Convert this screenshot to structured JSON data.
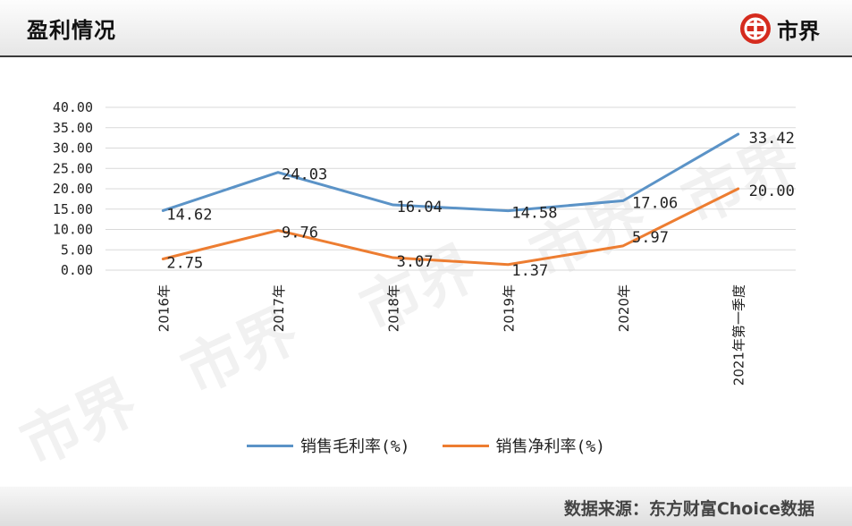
{
  "header": {
    "title": "盈利情况"
  },
  "brand": {
    "name": "市界",
    "icon": "shijie-logo-icon",
    "color": "#d52b1e"
  },
  "watermark": {
    "text": "市界"
  },
  "footer": {
    "source": "数据来源：东方财富Choice数据"
  },
  "chart_data": {
    "type": "line",
    "title": "",
    "xlabel": "",
    "ylabel": "",
    "ylim": [
      0,
      40
    ],
    "y_ticks": [
      "0.00",
      "5.00",
      "10.00",
      "15.00",
      "20.00",
      "25.00",
      "30.00",
      "35.00",
      "40.00"
    ],
    "categories": [
      "2016年",
      "2017年",
      "2018年",
      "2019年",
      "2020年",
      "2021年第一季度"
    ],
    "grid": true,
    "legend_position": "bottom",
    "series": [
      {
        "name": "销售毛利率(%)",
        "color": "#5b93c7",
        "values": [
          14.62,
          24.03,
          16.04,
          14.58,
          17.06,
          33.42
        ],
        "labels": [
          "14.62",
          "24.03",
          "16.04",
          "14.58",
          "17.06",
          "33.42"
        ]
      },
      {
        "name": "销售净利率(%)",
        "color": "#ed7d31",
        "values": [
          2.75,
          9.76,
          3.07,
          1.37,
          5.97,
          20.0
        ],
        "labels": [
          "2.75",
          "9.76",
          "3.07",
          "1.37",
          "5.97",
          "20.00"
        ]
      }
    ]
  }
}
